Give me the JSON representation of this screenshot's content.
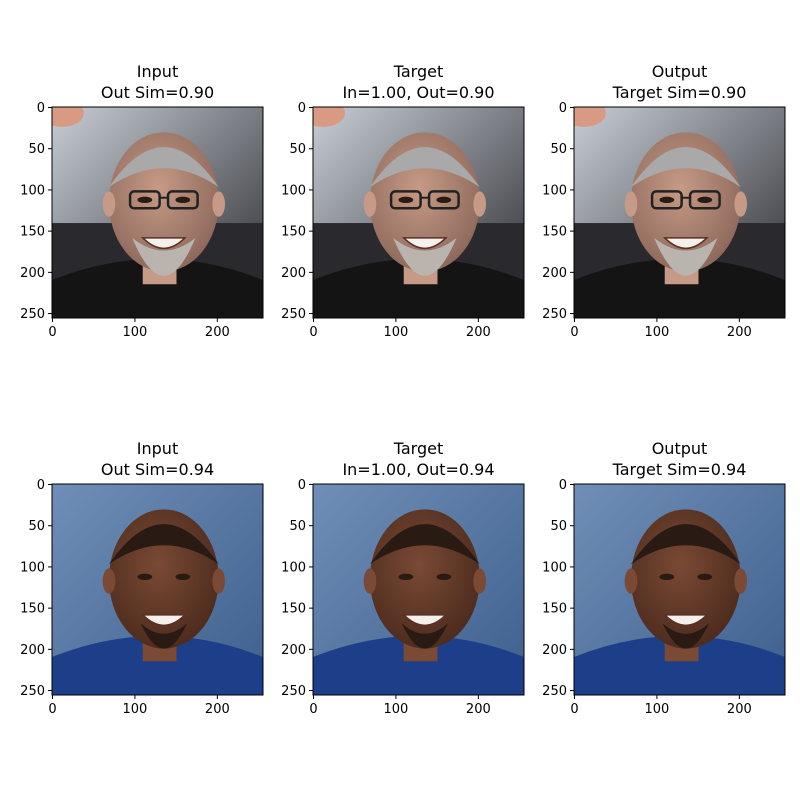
{
  "figure": {
    "axis": {
      "xticks": [
        "0",
        "100",
        "200"
      ],
      "yticks": [
        "0",
        "50",
        "100",
        "150",
        "200",
        "250"
      ]
    },
    "rows": [
      {
        "person": "older man with grey hair, beard and glasses, dark jacket",
        "colors": {
          "bg_dark": "#2a2a2e",
          "window": "#c8ced6",
          "skin": "#c69a86",
          "hair": "#a9a9a9",
          "clothes": "#141414",
          "corner": "#d89a82"
        },
        "panels": [
          {
            "title_l1": "Input",
            "title_l2": "Out Sim=0.90"
          },
          {
            "title_l1": "Target",
            "title_l2": "In=1.00, Out=0.90"
          },
          {
            "title_l1": "Output",
            "title_l2": "Target Sim=0.90"
          }
        ]
      },
      {
        "person": "smiling bald man with goatee, blue shirt, blue studio background",
        "colors": {
          "bg_dark": "#3e5f8c",
          "window": "#6f8fb8",
          "skin": "#7a4a34",
          "hair": "#2a1a14",
          "clothes": "#1d3f8a",
          "corner": "#3e5f8c"
        },
        "panels": [
          {
            "title_l1": "Input",
            "title_l2": "Out Sim=0.94"
          },
          {
            "title_l1": "Target",
            "title_l2": "In=1.00, Out=0.94"
          },
          {
            "title_l1": "Output",
            "title_l2": "Target Sim=0.94"
          }
        ]
      }
    ]
  }
}
